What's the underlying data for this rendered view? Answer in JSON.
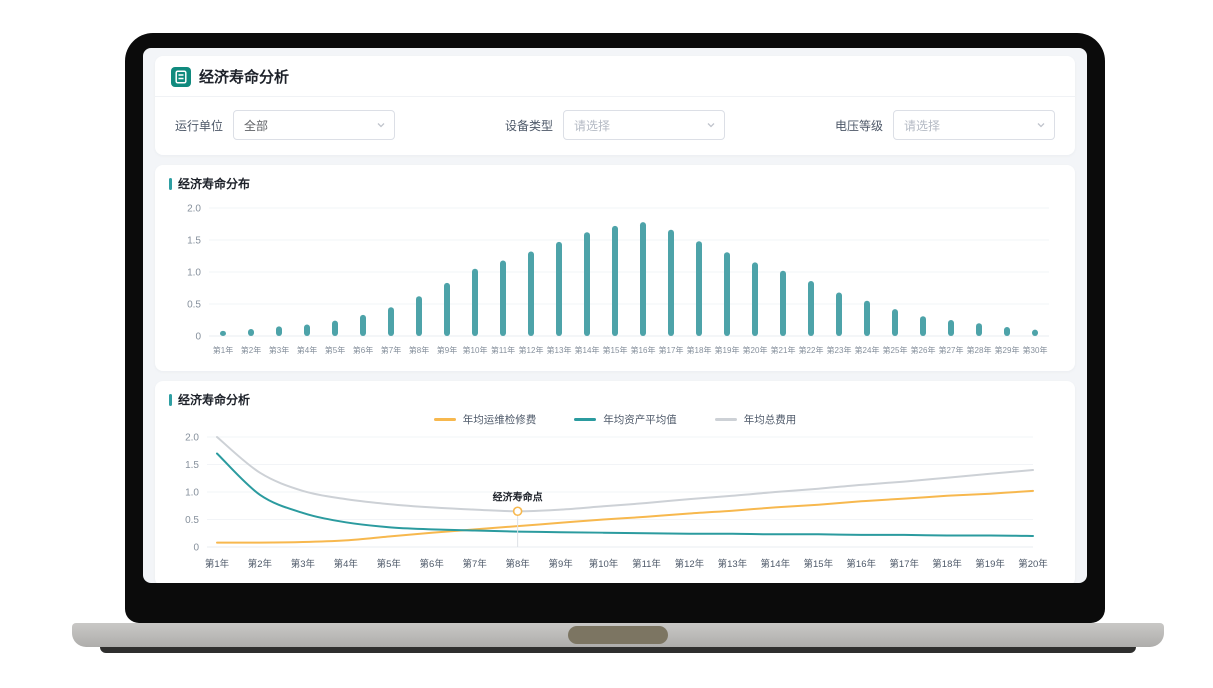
{
  "app": {
    "title": "经济寿命分析",
    "brand_color": "#108a7e"
  },
  "filters": {
    "operating_unit": {
      "label": "运行单位",
      "value": "全部"
    },
    "device_type": {
      "label": "设备类型",
      "placeholder": "请选择"
    },
    "voltage_level": {
      "label": "电压等级",
      "placeholder": "请选择"
    }
  },
  "colors": {
    "background": "#f3f5f8",
    "card": "#ffffff",
    "axis_text": "#86909c",
    "grid_line": "#f2f4f7",
    "annotation_text": "#1d2129"
  },
  "chart_data": [
    {
      "type": "bar",
      "title": "经济寿命分布",
      "categories": [
        "第1年",
        "第2年",
        "第3年",
        "第4年",
        "第5年",
        "第6年",
        "第7年",
        "第8年",
        "第9年",
        "第10年",
        "第11年",
        "第12年",
        "第13年",
        "第14年",
        "第15年",
        "第16年",
        "第17年",
        "第18年",
        "第19年",
        "第20年",
        "第21年",
        "第22年",
        "第23年",
        "第24年",
        "第25年",
        "第26年",
        "第27年",
        "第28年",
        "第29年",
        "第30年"
      ],
      "values": [
        0.08,
        0.11,
        0.15,
        0.18,
        0.24,
        0.33,
        0.45,
        0.62,
        0.83,
        1.05,
        1.18,
        1.32,
        1.47,
        1.62,
        1.72,
        1.78,
        1.66,
        1.48,
        1.31,
        1.15,
        1.02,
        0.86,
        0.68,
        0.55,
        0.42,
        0.31,
        0.25,
        0.2,
        0.14,
        0.1
      ],
      "ylim": [
        0,
        2.0
      ],
      "yticks": [
        0,
        0.5,
        1.0,
        1.5,
        2.0
      ],
      "ytick_labels": [
        "0",
        "0.5",
        "1.0",
        "1.5",
        "2.0"
      ],
      "bar_color": "#4da3a9",
      "grid": true
    },
    {
      "type": "line",
      "title": "经济寿命分析",
      "categories": [
        "第1年",
        "第2年",
        "第3年",
        "第4年",
        "第5年",
        "第6年",
        "第7年",
        "第8年",
        "第9年",
        "第10年",
        "第11年",
        "第12年",
        "第13年",
        "第14年",
        "第15年",
        "第16年",
        "第17年",
        "第18年",
        "第19年",
        "第20年"
      ],
      "series": [
        {
          "name": "年均运维检修费",
          "color": "#f7b84e",
          "values": [
            0.08,
            0.08,
            0.09,
            0.12,
            0.19,
            0.26,
            0.32,
            0.38,
            0.44,
            0.5,
            0.55,
            0.61,
            0.66,
            0.72,
            0.77,
            0.83,
            0.88,
            0.93,
            0.97,
            1.02
          ]
        },
        {
          "name": "年均资产平均值",
          "color": "#2b9b9f",
          "values": [
            1.7,
            0.95,
            0.62,
            0.45,
            0.36,
            0.32,
            0.3,
            0.28,
            0.27,
            0.26,
            0.25,
            0.24,
            0.24,
            0.23,
            0.23,
            0.22,
            0.22,
            0.21,
            0.21,
            0.2
          ]
        },
        {
          "name": "年均总费用",
          "color": "#cdd1d6",
          "values": [
            2.0,
            1.35,
            1.02,
            0.87,
            0.78,
            0.72,
            0.68,
            0.65,
            0.68,
            0.74,
            0.8,
            0.87,
            0.93,
            1.0,
            1.06,
            1.13,
            1.19,
            1.26,
            1.33,
            1.4
          ]
        }
      ],
      "ylim": [
        0,
        2.0
      ],
      "yticks": [
        0,
        0.5,
        1.0,
        1.5,
        2.0
      ],
      "ytick_labels": [
        "0",
        "0.5",
        "1.0",
        "1.5",
        "2.0"
      ],
      "legend_position": "top-center",
      "grid": true,
      "annotation": {
        "label": "经济寿命点",
        "series": "年均总费用",
        "category": "第8年",
        "value": 0.65,
        "marker_color": "#f7b84e"
      }
    }
  ]
}
